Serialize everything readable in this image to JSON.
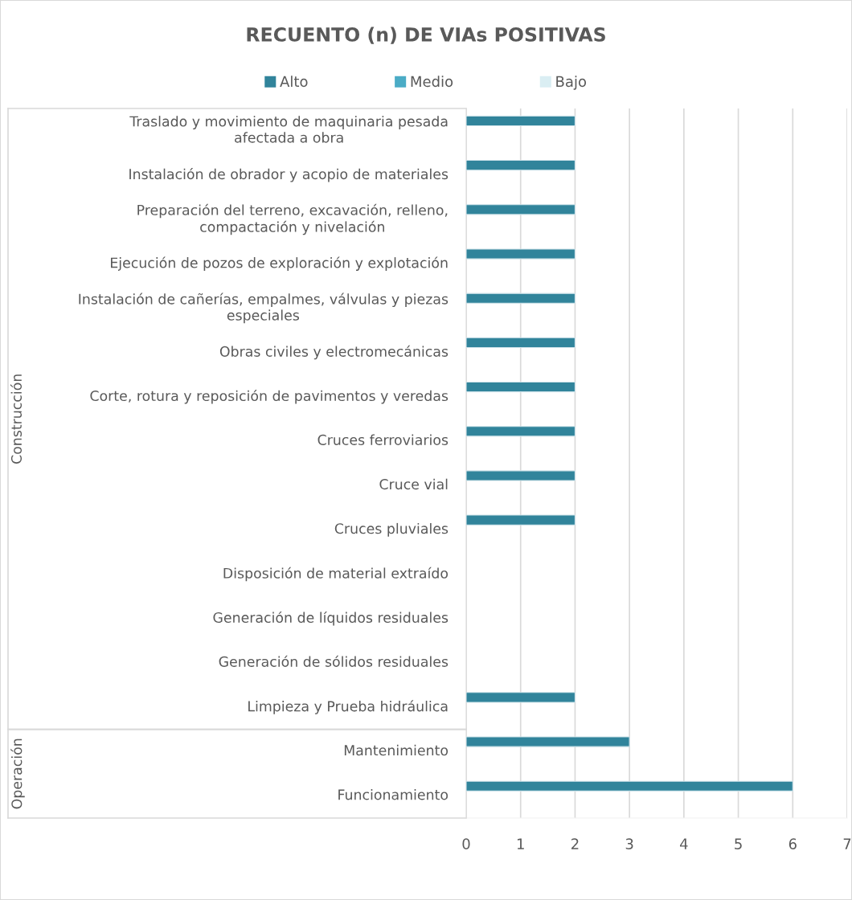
{
  "chart_data": {
    "type": "bar",
    "orientation": "horizontal",
    "title": "RECUENTO (n) DE VIAs POSITIVAS",
    "categories": [
      "Traslado y movimiento de maquinaria pesada afectada a obra",
      "Instalación de obrador y acopio de materiales",
      "Preparación del terreno, excavación, relleno, compactación y nivelación",
      "Ejecución de pozos de exploración y explotación",
      "Instalación de cañerías, empalmes, válvulas y piezas especiales",
      "Obras civiles y electromecánicas",
      "Corte, rotura y reposición de pavimentos y veredas",
      "Cruces ferroviarios",
      "Cruce vial",
      "Cruces pluviales",
      "Disposición de material extraído",
      "Generación de líquidos residuales",
      "Generación de sólidos residuales",
      "Limpieza y Prueba hidráulica",
      "Mantenimiento",
      "Funcionamiento"
    ],
    "series": [
      {
        "name": "Alto",
        "color": "#31849b",
        "values": [
          2,
          2,
          2,
          2,
          2,
          2,
          2,
          2,
          2,
          2,
          null,
          null,
          null,
          2,
          3,
          6
        ]
      },
      {
        "name": "Medio",
        "color": "#4bacc6",
        "values": [
          null,
          null,
          null,
          null,
          null,
          null,
          null,
          null,
          null,
          null,
          null,
          null,
          null,
          null,
          null,
          null
        ]
      },
      {
        "name": "Bajo",
        "color": "#daeef3",
        "values": [
          null,
          null,
          null,
          null,
          null,
          null,
          null,
          null,
          null,
          null,
          null,
          null,
          null,
          null,
          null,
          null
        ]
      }
    ],
    "annotations": [
      "Construcción",
      "Operación"
    ],
    "xlim": [
      0,
      7
    ],
    "xticks": [
      0,
      1,
      2,
      3,
      4,
      5,
      6,
      7
    ],
    "grid": "x",
    "legend": "top"
  }
}
